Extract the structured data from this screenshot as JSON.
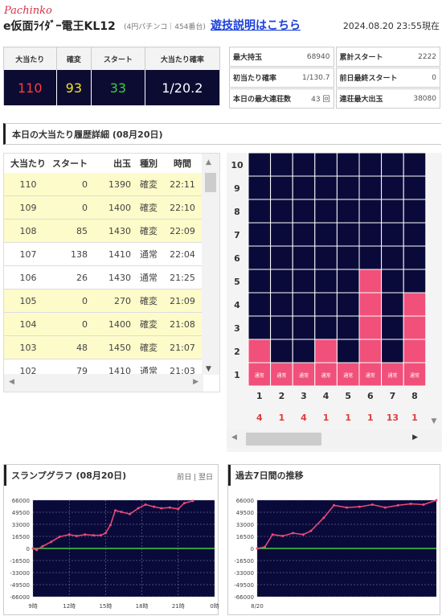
{
  "header": {
    "brand": "Pachinko",
    "model": "e仮面ﾗｲﾀﾞｰ電王KL12",
    "subinfo": "(4円パチンコ｜454番台)",
    "help_link": "遊技説明はこちら",
    "datetime": "2024.08.20 23:55現在"
  },
  "summary": {
    "headers": [
      "大当たり",
      "確変",
      "スタート",
      "大当たり確率"
    ],
    "values": [
      "110",
      "93",
      "33",
      "1/20.2"
    ],
    "colors": [
      "#ff3b3b",
      "#f2e41b",
      "#35d435",
      "#ffffff"
    ]
  },
  "stats": [
    {
      "label": "最大持玉",
      "value": "68940"
    },
    {
      "label": "累計スタート",
      "value": "2222"
    },
    {
      "label": "初当たり確率",
      "value": "1/130.7"
    },
    {
      "label": "前日最終スタート",
      "value": "0"
    },
    {
      "label": "本日の最大連荘数",
      "value": "43 回"
    },
    {
      "label": "連荘最大出玉",
      "value": "38080"
    }
  ],
  "history": {
    "title": "本日の大当たり履歴詳細 (08月20日)",
    "columns": [
      "大当たり",
      "スタート",
      "出玉",
      "種別",
      "時間"
    ],
    "rows": [
      [
        "110",
        "0",
        "1390",
        "確変",
        "22:11"
      ],
      [
        "109",
        "0",
        "1400",
        "確変",
        "22:10"
      ],
      [
        "108",
        "85",
        "1430",
        "確変",
        "22:09"
      ],
      [
        "107",
        "138",
        "1410",
        "通常",
        "22:04"
      ],
      [
        "106",
        "26",
        "1430",
        "通常",
        "21:25"
      ],
      [
        "105",
        "0",
        "270",
        "確変",
        "21:09"
      ],
      [
        "104",
        "0",
        "1400",
        "確変",
        "21:08"
      ],
      [
        "103",
        "48",
        "1450",
        "確変",
        "21:07"
      ],
      [
        "102",
        "79",
        "1410",
        "通常",
        "21:03"
      ]
    ]
  },
  "grid": {
    "y_labels": [
      "10",
      "9",
      "8",
      "7",
      "6",
      "5",
      "4",
      "3",
      "2",
      "1"
    ],
    "x_labels": [
      "1",
      "2",
      "3",
      "4",
      "5",
      "6",
      "7",
      "8"
    ],
    "bottom_counts": [
      "4",
      "1",
      "4",
      "1",
      "1",
      "1",
      "13",
      "1"
    ],
    "cell_label": "通常",
    "fill_heights": [
      2,
      1,
      1,
      2,
      1,
      5,
      1,
      4
    ],
    "bg_color": "#0a0a3a",
    "fill_color": "#f0507a"
  },
  "graphs": {
    "today_title": "スランプグラフ (08月20日)",
    "today_links": "前日 | 翌日",
    "week_title": "過去7日間の推移",
    "y_labels": [
      "66000",
      "49500",
      "33000",
      "16500",
      "0",
      "-16500",
      "-33000",
      "-49500",
      "-66000"
    ],
    "today_x_labels": [
      "9時",
      "12時",
      "15時",
      "18時",
      "21時",
      "0時"
    ],
    "week_x_labels": [
      "8/20"
    ]
  },
  "chart_data": [
    {
      "type": "line",
      "title": "スランプグラフ (08月20日)",
      "x": [
        "9時",
        "12時",
        "15時",
        "18時",
        "21時",
        "0時"
      ],
      "ylim": [
        -66000,
        66000
      ],
      "series": [
        {
          "values": [
            [
              9.0,
              0
            ],
            [
              9.3,
              -2000
            ],
            [
              9.8,
              3000
            ],
            [
              10.5,
              9000
            ],
            [
              11.2,
              16000
            ],
            [
              12.0,
              19000
            ],
            [
              12.6,
              17000
            ],
            [
              13.3,
              19000
            ],
            [
              14.0,
              18000
            ],
            [
              14.6,
              18000
            ],
            [
              15.0,
              21000
            ],
            [
              15.4,
              32000
            ],
            [
              15.8,
              52000
            ],
            [
              16.3,
              50000
            ],
            [
              17.0,
              47000
            ],
            [
              17.7,
              55000
            ],
            [
              18.3,
              60000
            ],
            [
              19.0,
              57000
            ],
            [
              19.6,
              55000
            ],
            [
              20.3,
              56000
            ],
            [
              21.0,
              54000
            ],
            [
              21.5,
              62000
            ],
            [
              22.2,
              65000
            ]
          ]
        }
      ]
    },
    {
      "type": "line",
      "title": "過去7日間の推移",
      "x": [
        "8/20"
      ],
      "ylim": [
        -66000,
        66000
      ],
      "series": [
        {
          "values": [
            [
              0.0,
              0
            ],
            [
              0.3,
              2000
            ],
            [
              0.6,
              19000
            ],
            [
              1.0,
              17000
            ],
            [
              1.4,
              21000
            ],
            [
              1.8,
              19000
            ],
            [
              2.1,
              24000
            ],
            [
              2.6,
              42000
            ],
            [
              3.0,
              59000
            ],
            [
              3.5,
              56000
            ],
            [
              4.0,
              57000
            ],
            [
              4.5,
              60000
            ],
            [
              5.0,
              56000
            ],
            [
              5.5,
              59000
            ],
            [
              6.0,
              61000
            ],
            [
              6.5,
              60000
            ],
            [
              7.0,
              66000
            ]
          ]
        }
      ]
    }
  ]
}
